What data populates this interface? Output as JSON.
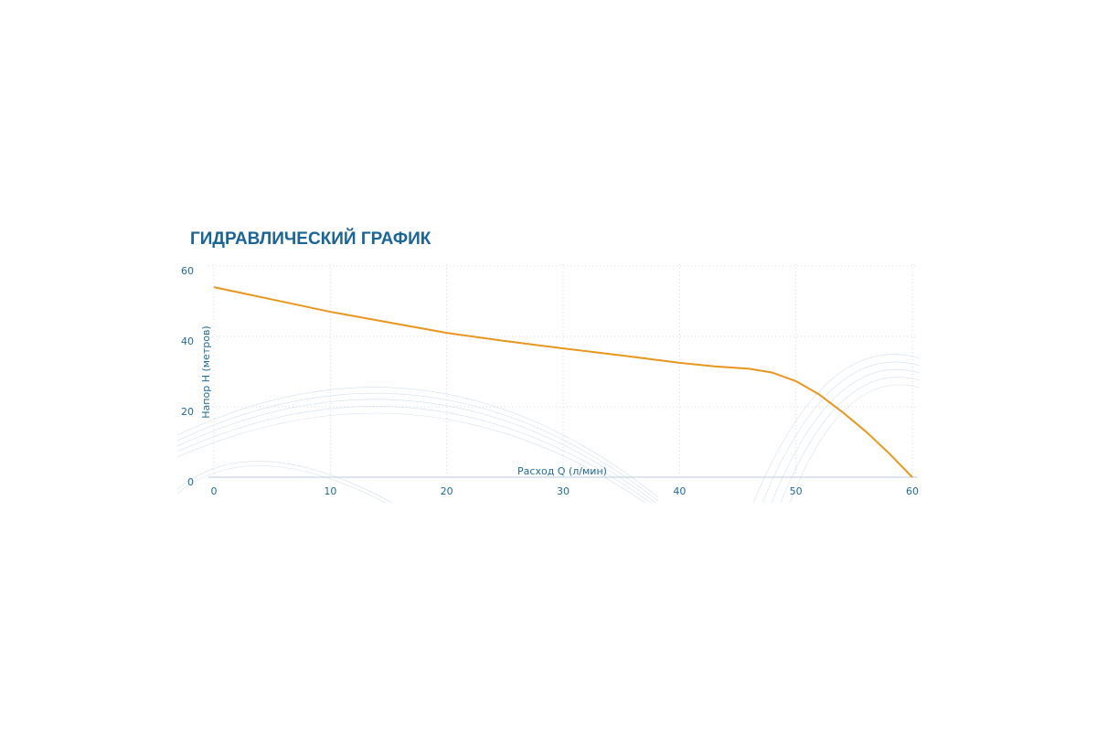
{
  "chart_data": {
    "type": "line",
    "title": "ГИДРАВЛИЧЕСКИЙ ГРАФИК",
    "x_label": "Расход Q (л/мин)",
    "y_label": "Напор H (метров)",
    "x": [
      0,
      5,
      10,
      15,
      20,
      25,
      30,
      35,
      40,
      43,
      46,
      48,
      50,
      52,
      54,
      56,
      58,
      60
    ],
    "series": [
      {
        "color": "#e8961e",
        "values": [
          54,
          50.5,
          47,
          44,
          41,
          38.7,
          36.6,
          34.6,
          32.5,
          31.5,
          30.8,
          29.7,
          27.3,
          23.5,
          18.5,
          13,
          6.8,
          0
        ]
      }
    ],
    "xlim": [
      0,
      60
    ],
    "xticks": [
      0,
      10,
      20,
      30,
      40,
      50,
      60
    ],
    "ylim": [
      0,
      60
    ],
    "yticks": [
      0,
      20,
      40,
      60
    ],
    "grid": true
  }
}
